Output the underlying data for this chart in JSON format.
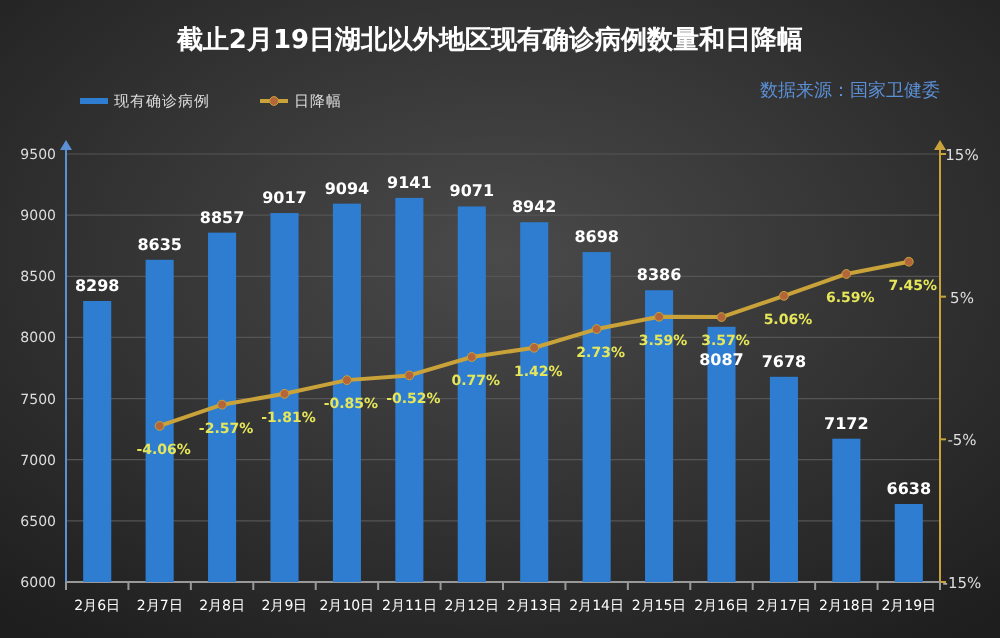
{
  "chart_data": {
    "type": "bar",
    "title": "截止2月19日湖北以外地区现有确诊病例数量和日降幅",
    "annotations": [
      "数据来源：国家卫健委"
    ],
    "categories": [
      "2月6日",
      "2月7日",
      "2月8日",
      "2月9日",
      "2月10日",
      "2月11日",
      "2月12日",
      "2月13日",
      "2月14日",
      "2月15日",
      "2月16日",
      "2月17日",
      "2月18日",
      "2月19日"
    ],
    "series": [
      {
        "name": "现有确诊病例",
        "type": "bar",
        "color": "#2e7dd1",
        "values": [
          8298,
          8635,
          8857,
          9017,
          9094,
          9141,
          9071,
          8942,
          8698,
          8386,
          8087,
          7678,
          7172,
          6638
        ]
      },
      {
        "name": "日降幅",
        "type": "line",
        "axis": "y2",
        "color": "#c9a23a",
        "marker": "circle",
        "values": [
          null,
          -4.06,
          -2.57,
          -1.81,
          -0.85,
          -0.52,
          0.77,
          1.42,
          2.73,
          3.59,
          3.57,
          5.06,
          6.59,
          7.45
        ],
        "value_labels": [
          null,
          "-4.06%",
          "-2.57%",
          "-1.81%",
          "-0.85%",
          "-0.52%",
          "0.77%",
          "1.42%",
          "2.73%",
          "3.59%",
          "3.57%",
          "5.06%",
          "6.59%",
          "7.45%"
        ]
      }
    ],
    "data_labels": true,
    "ylim": [
      6000,
      9500
    ],
    "yticks": [
      6000,
      6500,
      7000,
      7500,
      8000,
      8500,
      9000,
      9500
    ],
    "y2lim": [
      -15,
      15
    ],
    "y2ticks": [
      {
        "value": -15,
        "label": "-15%"
      },
      {
        "value": -5,
        "label": "-5%"
      },
      {
        "value": 5,
        "label": "5%"
      },
      {
        "value": 15,
        "label": "15%"
      }
    ],
    "grid": "y",
    "legend": "top left"
  }
}
